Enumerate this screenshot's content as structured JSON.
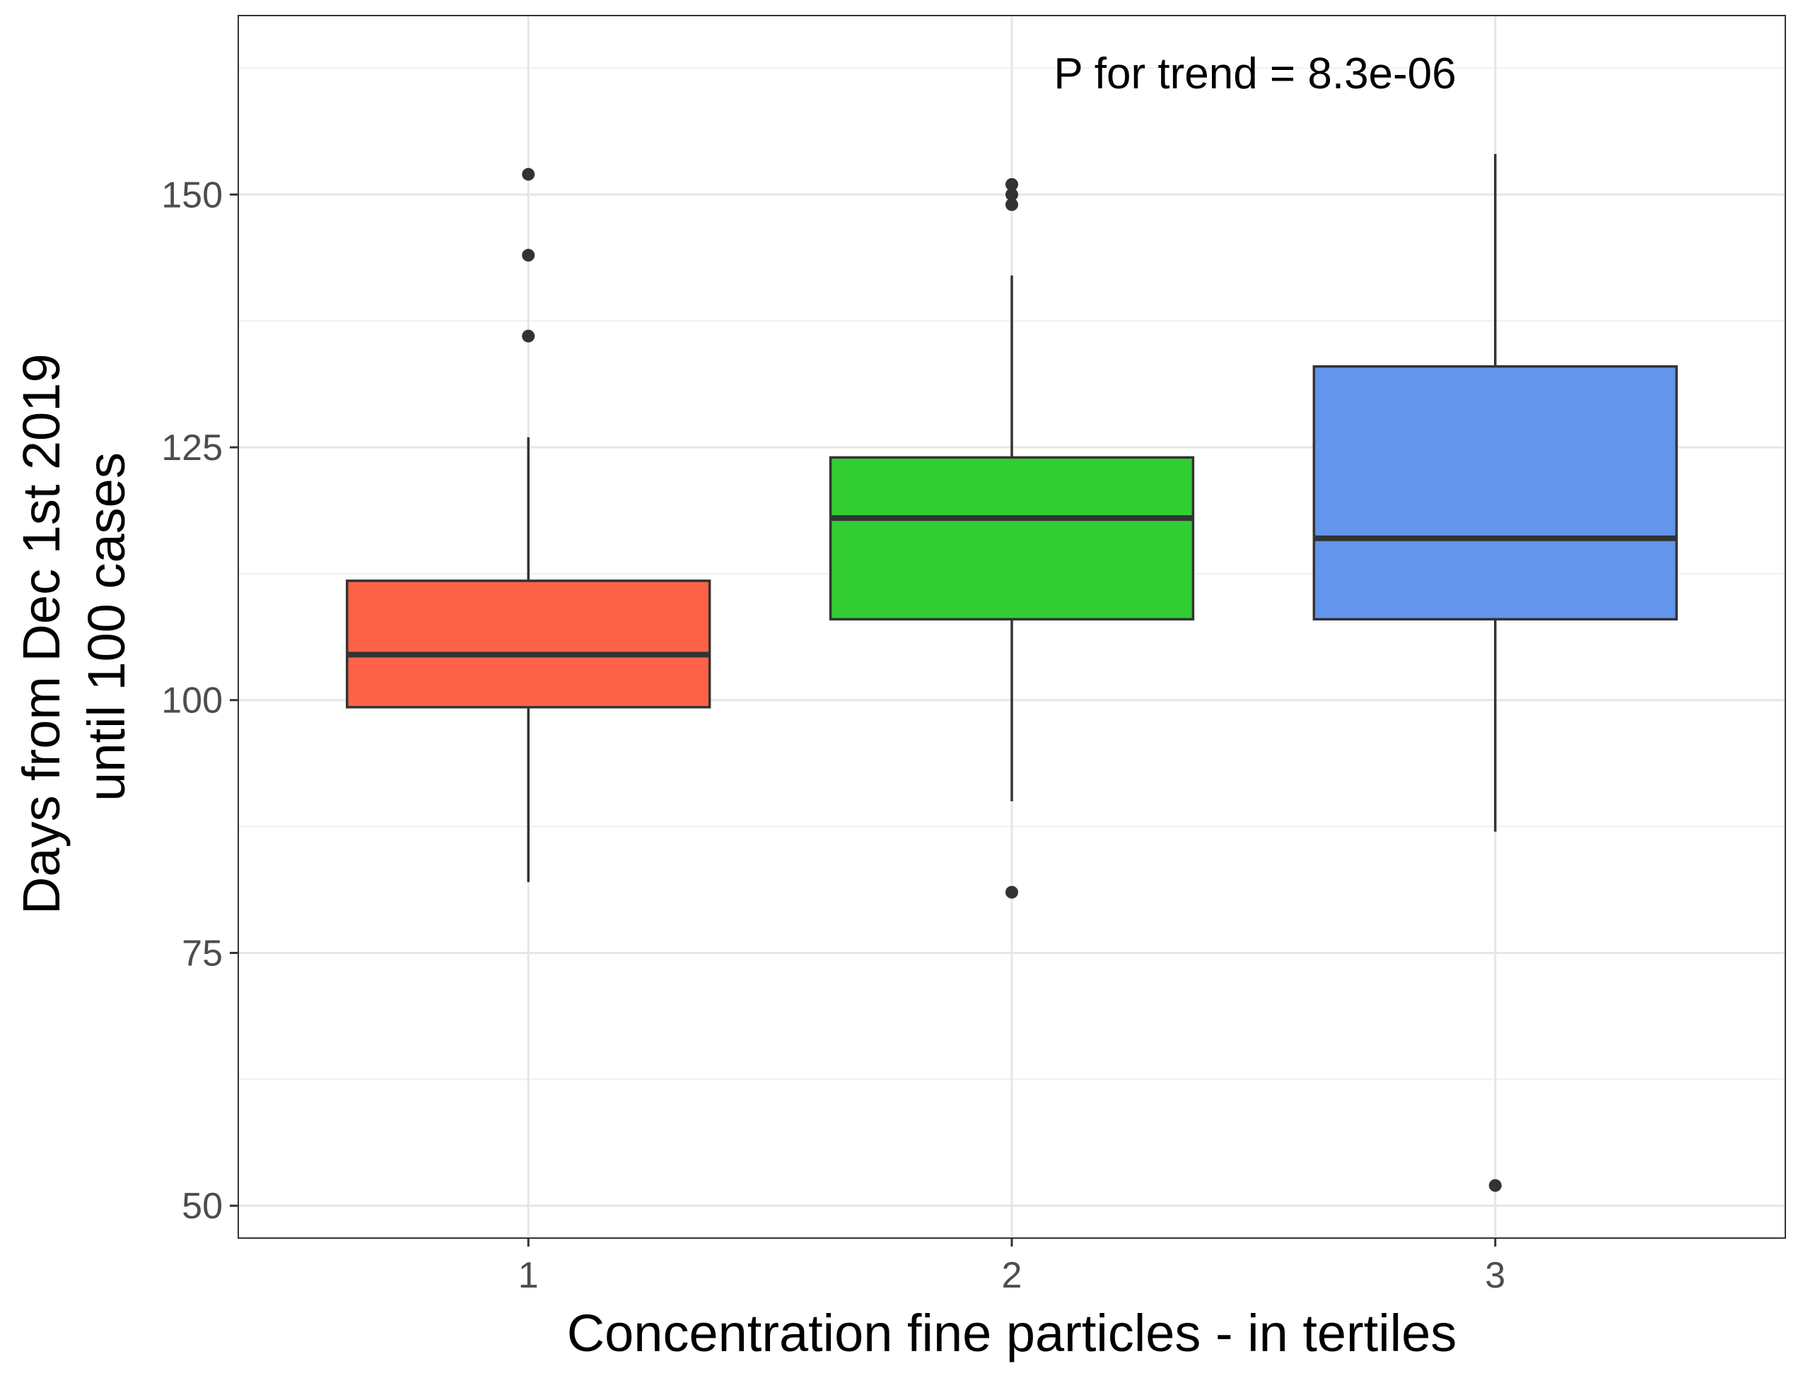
{
  "chart_data": {
    "type": "box",
    "xlabel": "Concentration fine particles - in tertiles",
    "ylabel_lines": [
      "Days from Dec 1st 2019",
      "until 100 cases"
    ],
    "ylim": [
      46.8,
      167.7
    ],
    "y_ticks": [
      50,
      75,
      100,
      125,
      150
    ],
    "y_minor_ticks": [
      62.5,
      87.5,
      112.5,
      137.5,
      162.5
    ],
    "grid": true,
    "annotation": "P for trend = 8.3e-06",
    "groups": [
      {
        "label": "1",
        "color": "#FF6347",
        "whisker_low": 82,
        "q1": 99.3,
        "median": 104.5,
        "q3": 111.8,
        "whisker_high": 126,
        "outliers": [
          136,
          144,
          152
        ]
      },
      {
        "label": "2",
        "color": "#32CD32",
        "whisker_low": 90,
        "q1": 108,
        "median": 118,
        "q3": 124,
        "whisker_high": 142,
        "outliers": [
          81,
          149,
          150,
          151
        ]
      },
      {
        "label": "3",
        "color": "#6495ED",
        "whisker_low": 87,
        "q1": 108,
        "median": 116,
        "q3": 133,
        "whisker_high": 154,
        "outliers": [
          52
        ]
      }
    ]
  }
}
